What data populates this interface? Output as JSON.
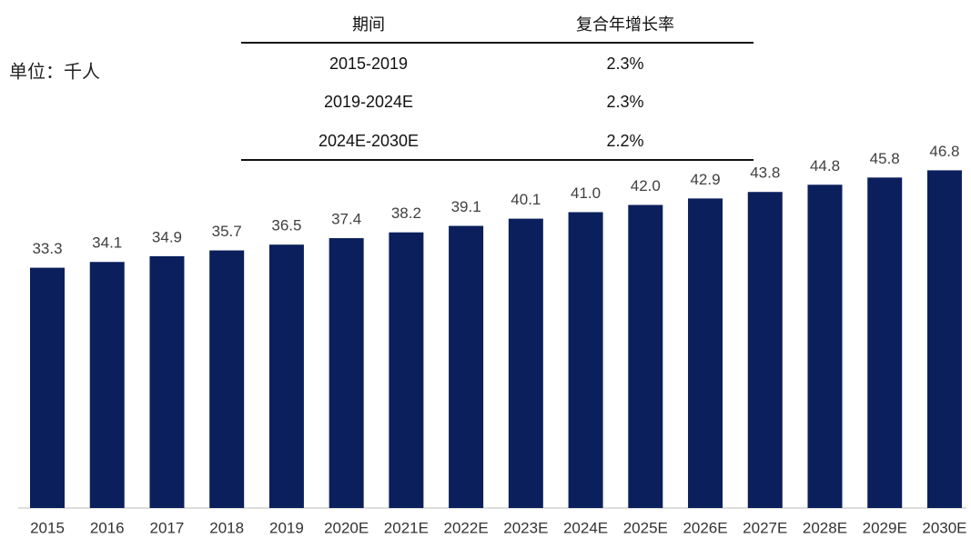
{
  "unit_label": "单位：千人",
  "table": {
    "header": [
      "期间",
      "复合年增长率"
    ],
    "rows": [
      [
        "2015-2019",
        "2.3%"
      ],
      [
        "2019-2024E",
        "2.3%"
      ],
      [
        "2024E-2030E",
        "2.2%"
      ]
    ]
  },
  "chart_data": {
    "type": "bar",
    "categories": [
      "2015",
      "2016",
      "2017",
      "2018",
      "2019",
      "2020E",
      "2021E",
      "2022E",
      "2023E",
      "2024E",
      "2025E",
      "2026E",
      "2027E",
      "2028E",
      "2029E",
      "2030E"
    ],
    "values": [
      33.3,
      34.1,
      34.9,
      35.7,
      36.5,
      37.4,
      38.2,
      39.1,
      40.1,
      41.0,
      42.0,
      42.9,
      43.8,
      44.8,
      45.8,
      46.8
    ],
    "value_labels": [
      "33.3",
      "34.1",
      "34.9",
      "35.7",
      "36.5",
      "37.4",
      "38.2",
      "39.1",
      "40.1",
      "41.0",
      "42.0",
      "42.9",
      "43.8",
      "44.8",
      "45.8",
      "46.8"
    ],
    "color": "#0b1f5c"
  }
}
